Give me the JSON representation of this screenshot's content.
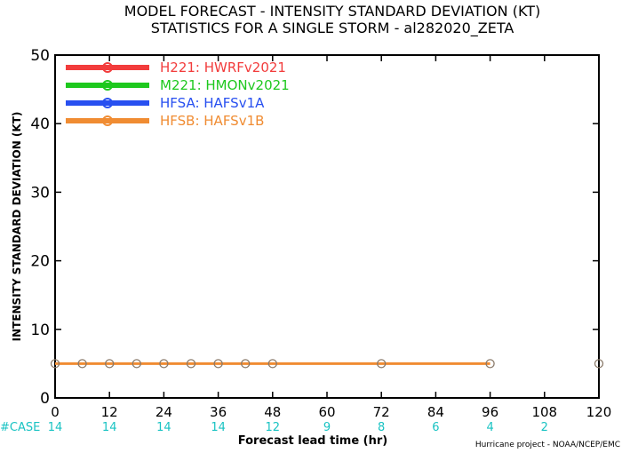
{
  "chart_data": {
    "type": "line",
    "title": "MODEL FORECAST - INTENSITY STANDARD DEVIATION (KT)",
    "subtitle": "STATISTICS FOR A SINGLE STORM - al282020_ZETA",
    "xlabel": "Forecast lead time (hr)",
    "ylabel": "INTENSITY STANDARD DEVIATION (KT)",
    "xlim": [
      0,
      120
    ],
    "ylim": [
      0,
      50
    ],
    "x_ticks": [
      "0",
      "12",
      "24",
      "36",
      "48",
      "60",
      "72",
      "84",
      "96",
      "108",
      "120"
    ],
    "y_ticks": [
      "0",
      "10",
      "20",
      "30",
      "40",
      "50"
    ],
    "x_tick_values": [
      0,
      12,
      24,
      36,
      48,
      60,
      72,
      84,
      96,
      108,
      120
    ],
    "y_tick_values": [
      0,
      10,
      20,
      30,
      40,
      50
    ],
    "grid": false,
    "legend_placement": "top-left",
    "series": [
      {
        "name": "H221: HWRFv2021",
        "color": "#f23c3c",
        "x": [],
        "y": []
      },
      {
        "name": "M221: HMONv2021",
        "color": "#1ec81e",
        "x": [],
        "y": []
      },
      {
        "name": "HFSA: HAFSv1A",
        "color": "#2850f0",
        "x": [],
        "y": []
      },
      {
        "name": "HFSB: HAFSv1B",
        "color": "#f08c32",
        "x": [
          0,
          6,
          12,
          18,
          24,
          30,
          36,
          42,
          48,
          72,
          96
        ],
        "y": [
          5,
          5,
          5,
          5,
          5,
          5,
          5,
          5,
          5,
          5,
          5
        ]
      }
    ],
    "extra_markers": [
      {
        "x": 120,
        "y": 5
      }
    ],
    "cases": {
      "label": "#CASE",
      "x": [
        0,
        12,
        24,
        36,
        48,
        60,
        72,
        84,
        96,
        108
      ],
      "values": [
        "14",
        "14",
        "14",
        "14",
        "12",
        "9",
        "8",
        "6",
        "4",
        "2"
      ],
      "color": "#19c3c3"
    }
  },
  "footer": "Hurricane project - NOAA/NCEP/EMC"
}
